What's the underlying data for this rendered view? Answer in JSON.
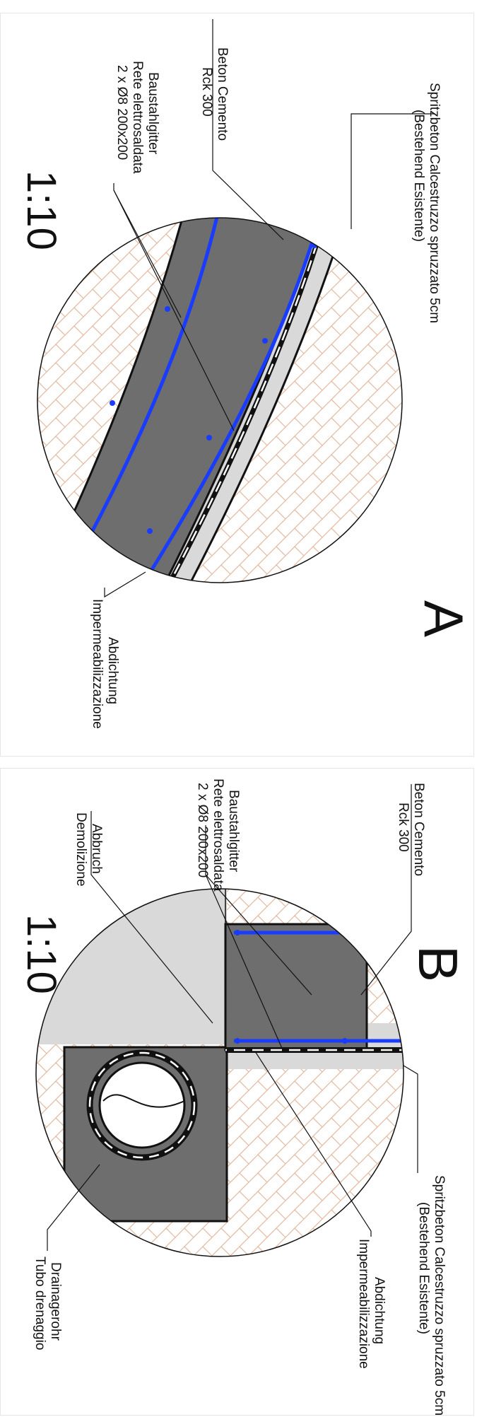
{
  "detail_a": {
    "letter": "A",
    "scale": "1:10",
    "labels": {
      "shotcrete_line1": "Spritzbeton Calcestruzzo spruzzato 5cm",
      "shotcrete_line2": "(Bestehend Esistente)",
      "concrete_line1": "Beton Cemento",
      "concrete_line2": "Rck 300",
      "mesh_line1": "Baustahlgitter",
      "mesh_line2": "Rete elettrosaldata",
      "mesh_line3": "2 x Ø8 200x200",
      "waterproof_line1": "Abdichtung",
      "waterproof_line2": "Impermeabilizzazione"
    }
  },
  "detail_b": {
    "letter": "B",
    "scale": "1:10",
    "labels": {
      "concrete_line1": "Beton Cemento",
      "concrete_line2": "Rck 300",
      "mesh_line1": "Baustahlgitter",
      "mesh_line2": "Rete elettrosaldata",
      "mesh_line3": "2 x Ø8 200x200",
      "demolition_line1": "Abbruch",
      "demolition_line2": "Demolizione",
      "shotcrete_line1": "Spritzbeton Calcestruzzo spruzzato 5cm",
      "shotcrete_line2": "(Bestehend Esistente)",
      "waterproof_line1": "Abdichtung",
      "waterproof_line2": "Impermeabilizzazione",
      "drain_line1": "Drainagerohr",
      "drain_line2": "Tubo drenaggio"
    }
  },
  "colors": {
    "concrete": "#6e6e6e",
    "shotcrete": "#d9d9d9",
    "rebar": "#1a3cff",
    "soil_hatch": "#e2b9a0",
    "outline": "#111111"
  }
}
